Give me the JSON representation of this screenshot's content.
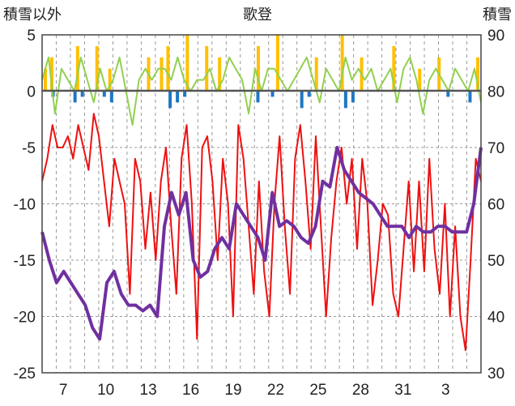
{
  "chart_data": {
    "type": "line",
    "title": "歌登",
    "ylabel_left": "積雪以外",
    "ylabel_right": "積雪",
    "y_left_range": [
      -25,
      5
    ],
    "y_left_ticks": [
      "5",
      "0",
      "-5",
      "-10",
      "-15",
      "-20",
      "-25"
    ],
    "y_right_range": [
      30,
      90
    ],
    "y_right_ticks": [
      "90",
      "80",
      "70",
      "60",
      "50",
      "40",
      "30"
    ],
    "x_tick_labels": [
      "7",
      "10",
      "13",
      "16",
      "19",
      "22",
      "25",
      "28",
      "31",
      "3"
    ],
    "x_range_days": 31,
    "grid": true,
    "series": [
      {
        "color": "#ee1111",
        "axis": "left",
        "values": [
          -8,
          -6,
          -3,
          -5,
          -5,
          -4,
          -6,
          -3,
          -5,
          -7,
          -2,
          -4,
          -8,
          -12,
          -6,
          -8,
          -10,
          -18,
          -6,
          -8,
          -14,
          -9,
          -15,
          -8,
          -5,
          -12,
          -18,
          -6,
          -3,
          -10,
          -22,
          -5,
          -4,
          -8,
          -15,
          -6,
          -10,
          -20,
          -3,
          -6,
          -12,
          -18,
          -8,
          -16,
          -20,
          -10,
          -4,
          -12,
          -18,
          -6,
          -3,
          -8,
          -14,
          -4,
          -12,
          -20,
          -13,
          -8,
          -5,
          -10,
          -6,
          -14,
          -6,
          -10,
          -19,
          -15,
          -10,
          -11,
          -18,
          -20,
          -14,
          -8,
          -16,
          -8,
          -16,
          -6,
          -14,
          -18,
          -10,
          -20,
          -12,
          -20,
          -23,
          -15,
          -6,
          -8
        ]
      },
      {
        "color": "#7030a0",
        "axis": "right",
        "values": [
          55,
          50,
          46,
          48,
          46,
          44,
          42,
          38,
          36,
          46,
          48,
          44,
          42,
          42,
          41,
          42,
          40,
          56,
          62,
          58,
          62,
          50,
          47,
          48,
          52,
          54,
          52,
          60,
          58,
          56,
          54,
          50,
          62,
          56,
          57,
          56,
          54,
          53,
          56,
          64,
          63,
          70,
          66,
          64,
          62,
          61,
          60,
          58,
          56,
          56,
          56,
          54,
          56,
          55,
          55,
          56,
          56,
          55,
          55,
          55,
          60,
          70
        ]
      },
      {
        "color": "#92d050",
        "axis": "left",
        "values": [
          1,
          3,
          -2,
          2,
          1,
          0,
          3,
          1,
          -1,
          2,
          0,
          1,
          3,
          0,
          -3,
          1,
          2,
          1,
          2,
          2,
          1,
          3,
          1,
          0,
          1,
          1,
          2,
          0,
          1,
          3,
          2,
          1,
          -2,
          2,
          0,
          2,
          2,
          1,
          0,
          1,
          2,
          3,
          1,
          -1,
          2,
          1,
          0,
          3,
          1,
          2,
          1,
          2,
          0,
          1,
          2,
          -1,
          2,
          3,
          1,
          -2,
          1,
          2,
          1,
          0,
          2,
          1,
          0,
          2,
          -1
        ]
      },
      {
        "color": "#ffc000",
        "axis": "left",
        "values": [
          2,
          3,
          0,
          0,
          0,
          4,
          0,
          0,
          4,
          0,
          2,
          0,
          0,
          0,
          0,
          0,
          3,
          0,
          3,
          4,
          0,
          0,
          5,
          0,
          0,
          4,
          0,
          3,
          0,
          0,
          0,
          0,
          0,
          4,
          0,
          0,
          5,
          0,
          0,
          0,
          0,
          0,
          3,
          0,
          0,
          0,
          5,
          0,
          0,
          3,
          0,
          0,
          0,
          0,
          4,
          0,
          0,
          0,
          2,
          0,
          0,
          3,
          0,
          0,
          0,
          0,
          0,
          3
        ]
      },
      {
        "color": "#1f77c4",
        "axis": "left",
        "values": [
          0,
          -0.5,
          0,
          0,
          -1,
          -0.5,
          0,
          0,
          -0.5,
          -1,
          0,
          0,
          0,
          0,
          0,
          0,
          0,
          -1.5,
          -1,
          -0.5,
          0,
          0,
          0,
          0,
          0,
          0,
          0,
          0,
          0,
          -1,
          0,
          -0.5,
          0,
          0,
          0,
          -1.5,
          -0.5,
          0,
          0,
          0,
          0,
          -1.5,
          -1,
          0,
          0,
          0,
          0,
          0,
          0,
          0,
          0,
          0,
          0,
          0,
          0,
          -0.5,
          0,
          0,
          -1,
          0
        ]
      }
    ]
  }
}
